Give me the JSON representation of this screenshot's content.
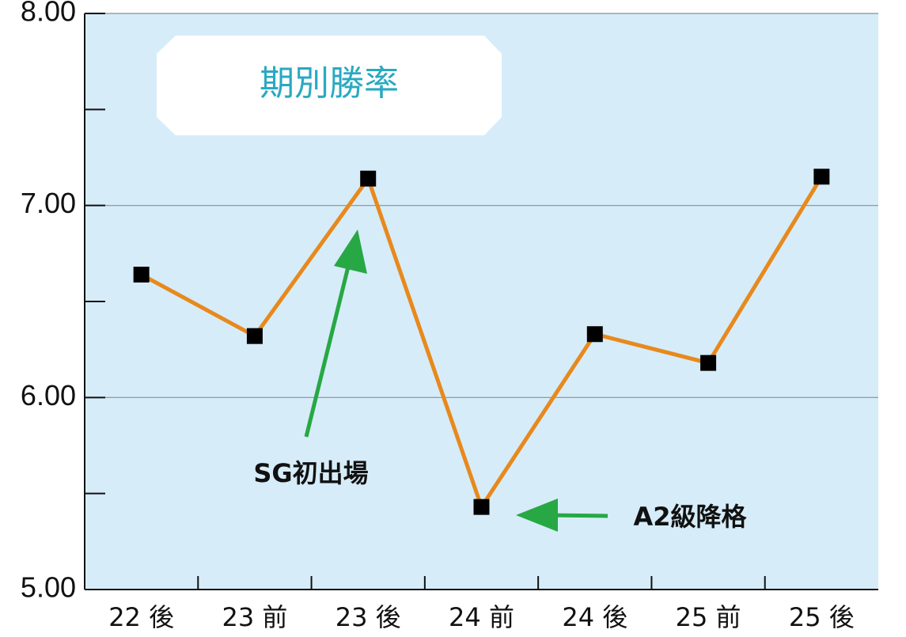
{
  "chart_data": {
    "type": "line",
    "title": "期別勝率",
    "categories": [
      "22 後",
      "23 前",
      "23 後",
      "24 前",
      "24 後",
      "25 前",
      "25 後"
    ],
    "series": [
      {
        "name": "勝率",
        "color": "#e8891c",
        "values": [
          6.64,
          6.32,
          7.14,
          5.43,
          6.33,
          6.18,
          7.15
        ]
      }
    ],
    "ylim": [
      5,
      8
    ],
    "yticks": [
      {
        "value": 5,
        "label": "5.00"
      },
      {
        "value": 6,
        "label": "6.00"
      },
      {
        "value": 7,
        "label": "7.00"
      },
      {
        "value": 8,
        "label": "8.00"
      }
    ],
    "minor_yticks": [
      5.5,
      6.5,
      7.5
    ],
    "grid": true,
    "marker_color": "#000000",
    "annotations": [
      "SG初出場",
      "A2級降格"
    ]
  }
}
